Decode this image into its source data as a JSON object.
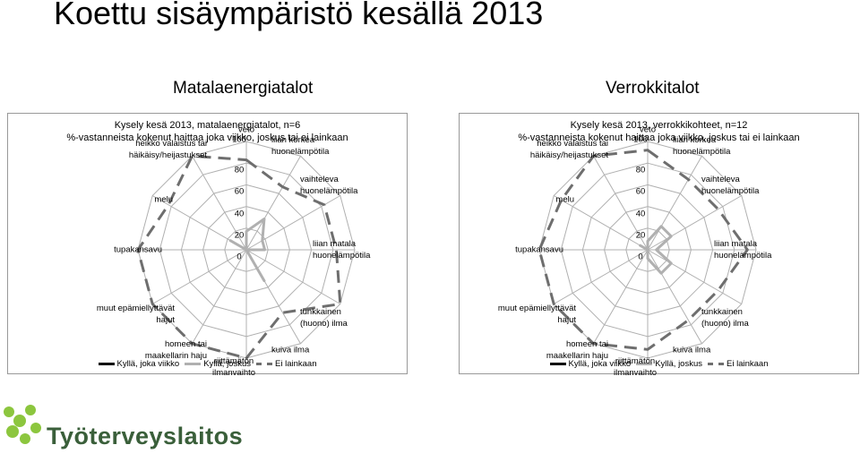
{
  "slide": {
    "title": "Koettu sisäympäristö kesällä 2013",
    "left_heading": "Matalaenergiatalot",
    "right_heading": "Verrokkitalot"
  },
  "colors": {
    "series1": "#000000",
    "series2": "#b0b0b0",
    "series3": "#6e6e6e",
    "grid": "#b0b0b0",
    "logo": "#3a5f3a"
  },
  "logo": {
    "text": "Työterveyslaitos"
  },
  "chart_data": [
    {
      "type": "radar",
      "title": "Kysely kesä 2013, matalaenergiatalot, n=6",
      "subtitle": "%-vastanneista kokenut haittaa joka viikko, joskus tai ei lainkaan",
      "axis_ticks": [
        "0",
        "20",
        "40",
        "60",
        "80",
        "100"
      ],
      "rlim": [
        0,
        100
      ],
      "categories": [
        "veto",
        "liian korkea huonelämpötila",
        "vaihteleva huonelämpötila",
        "liian matala huonelämpötila",
        "tunkkainen (huono) ilma",
        "kuiva ilma",
        "riittämätön ilmanvaihto",
        "homeen tai maakellarin haju",
        "muut epämiellyttävät hajut",
        "tupakansavu",
        "melu",
        "heikko valaistus tai häikäisy/heijastukset"
      ],
      "series": [
        {
          "name": "Kyllä, joka viikko",
          "values": [
            0,
            0,
            0,
            0,
            0,
            0,
            0,
            0,
            0,
            0,
            0,
            0
          ]
        },
        {
          "name": "Kyllä, joskus",
          "values": [
            17,
            33,
            17,
            17,
            0,
            33,
            0,
            0,
            0,
            0,
            17,
            0
          ]
        },
        {
          "name": "Ei lainkaan",
          "values": [
            83,
            67,
            83,
            83,
            100,
            67,
            100,
            100,
            100,
            100,
            83,
            100
          ]
        }
      ]
    },
    {
      "type": "radar",
      "title": "Kysely kesä 2013, verrokkikohteet, n=12",
      "subtitle": "%-vastanneista kokenut haittaa joka viikko, joskus tai ei lainkaan",
      "axis_ticks": [
        "0",
        "20",
        "40",
        "60",
        "80",
        "100"
      ],
      "rlim": [
        0,
        100
      ],
      "categories": [
        "veto",
        "liian korkea huonelämpötila",
        "vaihteleva huonelämpötila",
        "liian matala huonelämpötila",
        "tunkkainen (huono) ilma",
        "kuiva ilma",
        "riittämätön ilmanvaihto",
        "homeen tai maakellarin haju",
        "muut epämiellyttävät hajut",
        "tupakansavu",
        "melu",
        "heikko valaistus tai häikäisy/heijastukset"
      ],
      "series": [
        {
          "name": "Kyllä, joka viikko",
          "values": [
            0,
            0,
            0,
            0,
            0,
            0,
            0,
            0,
            0,
            0,
            0,
            0
          ]
        },
        {
          "name": "Kyllä, joskus",
          "values": [
            8,
            25,
            25,
            8,
            25,
            25,
            8,
            0,
            0,
            0,
            8,
            0
          ]
        },
        {
          "name": "Ei lainkaan",
          "values": [
            92,
            75,
            75,
            92,
            75,
            75,
            92,
            100,
            100,
            100,
            92,
            100
          ]
        }
      ]
    }
  ]
}
